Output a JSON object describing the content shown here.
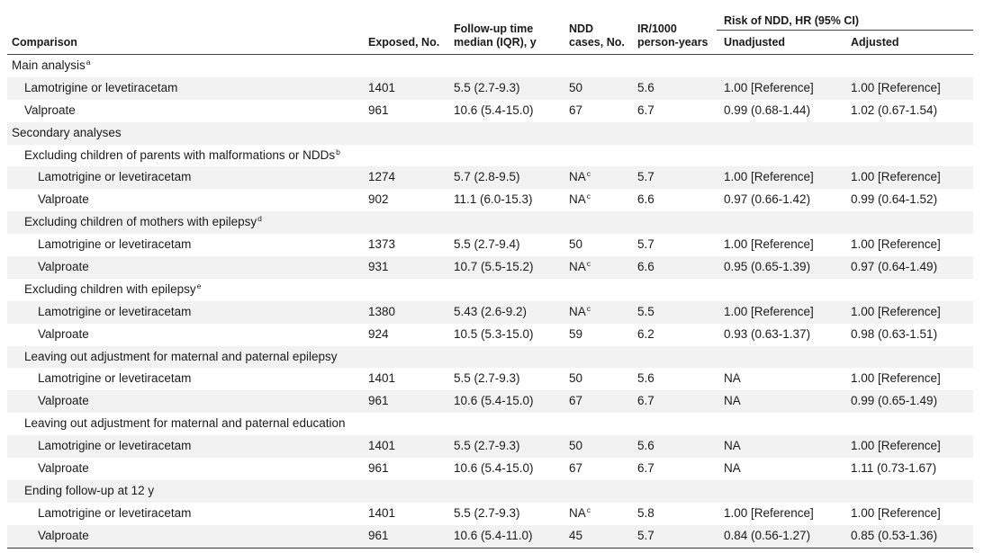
{
  "header": {
    "comparison": "Comparison",
    "exposed": "Exposed, No.",
    "followup_line1": "Follow-up time",
    "followup_line2": "median (IQR), y",
    "ndd_line1": "NDD",
    "ndd_line2": "cases, No.",
    "ir_line1": "IR/1000",
    "ir_line2": "person-years",
    "risk_group": "Risk of NDD, HR (95% CI)",
    "unadjusted": "Unadjusted",
    "adjusted": "Adjusted"
  },
  "rows": [
    {
      "type": "section",
      "label": "Main analysis",
      "sup": "a"
    },
    {
      "type": "data",
      "label": "Lamotrigine or levetiracetam",
      "exposed": "1401",
      "followup": "5.5 (2.7-9.3)",
      "ndd": "50",
      "ndd_sup": "",
      "ir": "5.6",
      "unadjusted": "1.00 [Reference]",
      "adjusted": "1.00 [Reference]"
    },
    {
      "type": "data",
      "label": "Valproate",
      "exposed": "961",
      "followup": "10.6 (5.4-15.0)",
      "ndd": "67",
      "ndd_sup": "",
      "ir": "6.7",
      "unadjusted": "0.99 (0.68-1.44)",
      "adjusted": "1.02 (0.67-1.54)"
    },
    {
      "type": "section",
      "label": "Secondary analyses",
      "sup": ""
    },
    {
      "type": "subgroup",
      "label": "Excluding children of parents with malformations or NDDs",
      "sup": "b"
    },
    {
      "type": "data2",
      "label": "Lamotrigine or levetiracetam",
      "exposed": "1274",
      "followup": "5.7 (2.8-9.5)",
      "ndd": "NA",
      "ndd_sup": "c",
      "ir": "5.7",
      "unadjusted": "1.00 [Reference]",
      "adjusted": "1.00 [Reference]"
    },
    {
      "type": "data2",
      "label": "Valproate",
      "exposed": "902",
      "followup": "11.1 (6.0-15.3)",
      "ndd": "NA",
      "ndd_sup": "c",
      "ir": "6.6",
      "unadjusted": "0.97 (0.66-1.42)",
      "adjusted": "0.99 (0.64-1.52)"
    },
    {
      "type": "subgroup",
      "label": "Excluding children of mothers with epilepsy",
      "sup": "d"
    },
    {
      "type": "data2",
      "label": "Lamotrigine or levetiracetam",
      "exposed": "1373",
      "followup": "5.5 (2.7-9.4)",
      "ndd": "50",
      "ndd_sup": "",
      "ir": "5.7",
      "unadjusted": "1.00 [Reference]",
      "adjusted": "1.00 [Reference]"
    },
    {
      "type": "data2",
      "label": "Valproate",
      "exposed": "931",
      "followup": "10.7 (5.5-15.2)",
      "ndd": "NA",
      "ndd_sup": "c",
      "ir": "6.6",
      "unadjusted": "0.95 (0.65-1.39)",
      "adjusted": "0.97 (0.64-1.49)"
    },
    {
      "type": "subgroup",
      "label": "Excluding children with epilepsy",
      "sup": "e"
    },
    {
      "type": "data2",
      "label": "Lamotrigine or levetiracetam",
      "exposed": "1380",
      "followup": "5.43 (2.6-9.2)",
      "ndd": "NA",
      "ndd_sup": "c",
      "ir": "5.5",
      "unadjusted": "1.00 [Reference]",
      "adjusted": "1.00 [Reference]"
    },
    {
      "type": "data2",
      "label": "Valproate",
      "exposed": "924",
      "followup": "10.5 (5.3-15.0)",
      "ndd": "59",
      "ndd_sup": "",
      "ir": "6.2",
      "unadjusted": "0.93 (0.63-1.37)",
      "adjusted": "0.98 (0.63-1.51)"
    },
    {
      "type": "subgroup",
      "label": "Leaving out adjustment for maternal and paternal epilepsy",
      "sup": ""
    },
    {
      "type": "data2",
      "label": "Lamotrigine or levetiracetam",
      "exposed": "1401",
      "followup": "5.5 (2.7-9.3)",
      "ndd": "50",
      "ndd_sup": "",
      "ir": "5.6",
      "unadjusted": "NA",
      "adjusted": "1.00 [Reference]"
    },
    {
      "type": "data2",
      "label": "Valproate",
      "exposed": "961",
      "followup": "10.6 (5.4-15.0)",
      "ndd": "67",
      "ndd_sup": "",
      "ir": "6.7",
      "unadjusted": "NA",
      "adjusted": "0.99 (0.65-1.49)"
    },
    {
      "type": "subgroup",
      "label": "Leaving out adjustment for maternal and paternal education",
      "sup": ""
    },
    {
      "type": "data2",
      "label": "Lamotrigine or levetiracetam",
      "exposed": "1401",
      "followup": "5.5 (2.7-9.3)",
      "ndd": "50",
      "ndd_sup": "",
      "ir": "5.6",
      "unadjusted": "NA",
      "adjusted": "1.00 [Reference]"
    },
    {
      "type": "data2",
      "label": "Valproate",
      "exposed": "961",
      "followup": "10.6 (5.4-15.0)",
      "ndd": "67",
      "ndd_sup": "",
      "ir": "6.7",
      "unadjusted": "NA",
      "adjusted": "1.11 (0.73-1.67)"
    },
    {
      "type": "subgroup",
      "label": "Ending follow-up at 12 y",
      "sup": ""
    },
    {
      "type": "data2",
      "label": "Lamotrigine or levetiracetam",
      "exposed": "1401",
      "followup": "5.5 (2.7-9.3)",
      "ndd": "NA",
      "ndd_sup": "c",
      "ir": "5.8",
      "unadjusted": "1.00 [Reference]",
      "adjusted": "1.00 [Reference]"
    },
    {
      "type": "data2",
      "label": "Valproate",
      "exposed": "961",
      "followup": "10.6 (5.4-11.0)",
      "ndd": "45",
      "ndd_sup": "",
      "ir": "5.7",
      "unadjusted": "0.84 (0.56-1.27)",
      "adjusted": "0.85 (0.53-1.36)"
    }
  ]
}
